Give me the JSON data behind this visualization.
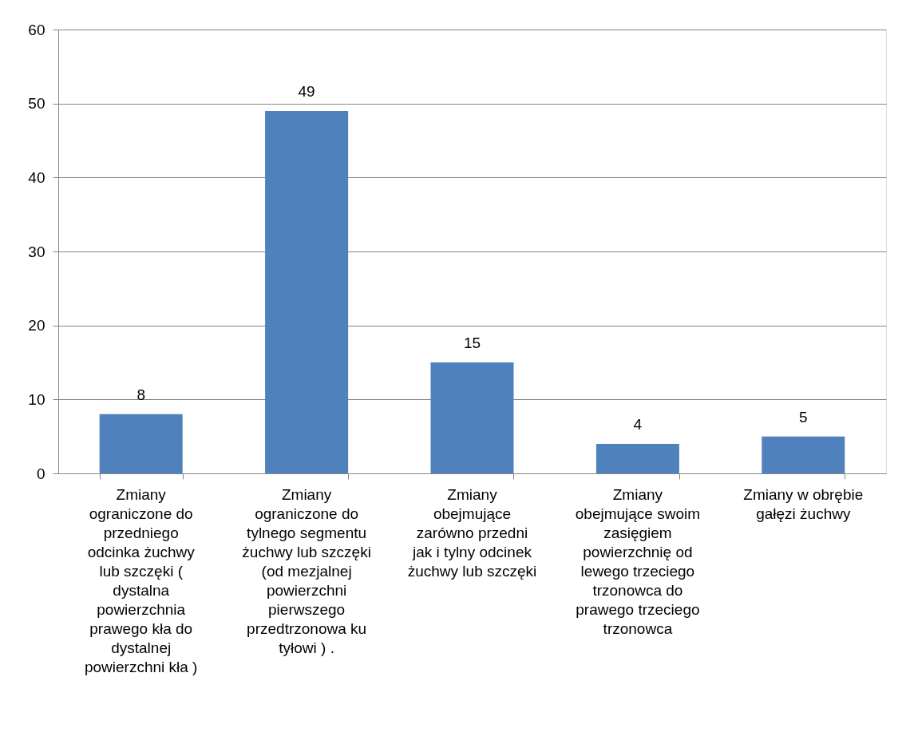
{
  "chart_data": {
    "type": "bar",
    "categories": [
      "Zmiany\nograniczone do\nprzedniego\nodcinka żuchwy\nlub szczęki (\ndystalna\npowierzchnia\nprawego kła do\ndystalnej\npowierzchni kła )",
      "Zmiany\nograniczone do\ntylnego segmentu\nżuchwy lub szczęki\n(od mezjalnej\npowierzchni\npierwszego\nprzedtrzonowa ku\ntyłowi ) .",
      "Zmiany\nobejmujące\nzarówno przedni\njak i tylny odcinek\nżuchwy lub szczęki",
      "Zmiany\nobejmujące swoim\nzasięgiem\npowierzchnię od\nlewego trzeciego\ntrzonowca do\nprawego trzeciego\ntrzonowca",
      "Zmiany w obrębie\ngałęzi żuchwy"
    ],
    "values": [
      8,
      49,
      15,
      4,
      5
    ],
    "color": "#4f81bd",
    "ylim": [
      0,
      60
    ],
    "yticks": [
      0,
      10,
      20,
      30,
      40,
      50,
      60
    ],
    "grid": "y",
    "data_labels": true
  }
}
